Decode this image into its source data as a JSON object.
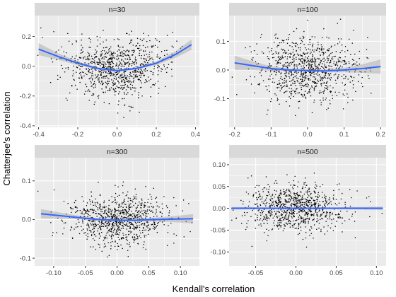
{
  "chart_data": {
    "type": "scatter",
    "title": "",
    "xlabel": "Kendall's correlation",
    "ylabel": "Chatterjee's correlation",
    "layout": "facet-grid-2x2",
    "grid": true,
    "legend": "none",
    "colors": {
      "point": "#000000",
      "smooth_line": "#3366FF",
      "ribbon": "#999999",
      "panel_bg": "#EBEBEB",
      "strip_bg": "#D9D9D9",
      "gridline": "#FFFFFF"
    },
    "panels": [
      {
        "label": "n=30",
        "x_ticks": [
          -0.4,
          -0.2,
          0.0,
          0.2,
          0.4
        ],
        "x_tick_labels": [
          "-0.4",
          "-0.2",
          "0.0",
          "0.2",
          "0.4"
        ],
        "y_ticks": [
          -0.4,
          -0.2,
          0.0,
          0.2
        ],
        "y_tick_labels": [
          "-0.4",
          "-0.2",
          "0.0",
          "0.2"
        ],
        "xlim": [
          -0.42,
          0.42
        ],
        "ylim": [
          -0.41,
          0.34
        ],
        "n_points": 900,
        "x_sd": 0.13,
        "y_sd": 0.095,
        "smooth": {
          "x": [
            -0.4,
            -0.3,
            -0.2,
            -0.1,
            0.0,
            0.1,
            0.2,
            0.3,
            0.38
          ],
          "y": [
            0.115,
            0.065,
            0.02,
            -0.015,
            -0.03,
            -0.015,
            0.02,
            0.08,
            0.145
          ],
          "se": [
            0.04,
            0.022,
            0.012,
            0.008,
            0.007,
            0.008,
            0.012,
            0.022,
            0.035
          ]
        }
      },
      {
        "label": "n=100",
        "x_ticks": [
          -0.2,
          -0.1,
          0.0,
          0.1,
          0.2
        ],
        "x_tick_labels": [
          "-0.2",
          "-0.1",
          "0.0",
          "0.1",
          "0.2"
        ],
        "y_ticks": [
          -0.1,
          0.0,
          0.1
        ],
        "y_tick_labels": [
          "-0.1",
          "0.0",
          "0.1"
        ],
        "xlim": [
          -0.215,
          0.215
        ],
        "ylim": [
          -0.2,
          0.19
        ],
        "n_points": 900,
        "x_sd": 0.068,
        "y_sd": 0.055,
        "smooth": {
          "x": [
            -0.2,
            -0.15,
            -0.1,
            -0.05,
            0.0,
            0.05,
            0.1,
            0.15,
            0.2
          ],
          "y": [
            0.025,
            0.015,
            0.005,
            0.0,
            -0.002,
            -0.003,
            0.0,
            0.005,
            0.012
          ],
          "se": [
            0.025,
            0.015,
            0.008,
            0.005,
            0.004,
            0.005,
            0.008,
            0.015,
            0.025
          ]
        }
      },
      {
        "label": "n=300",
        "x_ticks": [
          -0.1,
          -0.05,
          0.0,
          0.05,
          0.1
        ],
        "x_tick_labels": [
          "-0.10",
          "-0.05",
          "0.00",
          "0.05",
          "0.10"
        ],
        "y_ticks": [
          -0.1,
          0.0,
          0.1
        ],
        "y_tick_labels": [
          "-0.1",
          "0.0",
          "0.1"
        ],
        "xlim": [
          -0.13,
          0.13
        ],
        "ylim": [
          -0.12,
          0.16
        ],
        "n_points": 900,
        "x_sd": 0.04,
        "y_sd": 0.033,
        "smooth": {
          "x": [
            -0.12,
            -0.09,
            -0.06,
            -0.03,
            0.0,
            0.03,
            0.06,
            0.09,
            0.12
          ],
          "y": [
            0.015,
            0.01,
            0.005,
            0.0,
            -0.002,
            -0.002,
            0.0,
            0.001,
            0.002
          ],
          "se": [
            0.012,
            0.008,
            0.005,
            0.003,
            0.003,
            0.003,
            0.005,
            0.008,
            0.012
          ]
        }
      },
      {
        "label": "n=500",
        "x_ticks": [
          -0.05,
          0.0,
          0.05,
          0.1
        ],
        "x_tick_labels": [
          "-0.05",
          "0.00",
          "0.05",
          "0.10"
        ],
        "y_ticks": [
          -0.1,
          -0.05,
          0.0,
          0.05,
          0.1
        ],
        "y_tick_labels": [
          "-0.10",
          "-0.05",
          "0.00",
          "0.05",
          "0.10"
        ],
        "xlim": [
          -0.083,
          0.112
        ],
        "ylim": [
          -0.132,
          0.116
        ],
        "n_points": 900,
        "x_sd": 0.03,
        "y_sd": 0.028,
        "smooth": {
          "x": [
            -0.08,
            -0.04,
            0.0,
            0.04,
            0.08,
            0.108
          ],
          "y": [
            0.0,
            0.0,
            0.0,
            0.0,
            0.0,
            0.0
          ],
          "se": [
            0.003,
            0.002,
            0.002,
            0.002,
            0.003,
            0.004
          ]
        }
      }
    ]
  }
}
